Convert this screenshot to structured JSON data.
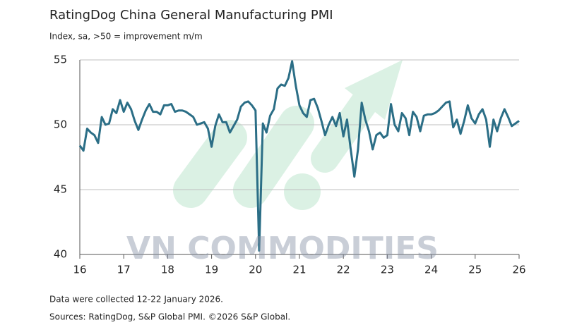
{
  "chart_data": {
    "type": "line",
    "title": "RatingDog China General Manufacturing PMI",
    "subtitle": "Index, sa, >50 = improvement m/m",
    "notes": [
      "Data were collected 12-22 January 2026.",
      "Sources: RatingDog, S&P Global PMI. ©2026 S&P Global."
    ],
    "watermark": "VN COMMODITIES",
    "color": "#2b6e86",
    "grid": true,
    "xlim": [
      16,
      26
    ],
    "xticks": [
      16,
      17,
      18,
      19,
      20,
      21,
      22,
      23,
      24,
      25,
      26
    ],
    "ylim": [
      40,
      55
    ],
    "yticks": [
      40,
      45,
      50,
      55
    ],
    "x": [
      16,
      16.083,
      16.167,
      16.25,
      16.333,
      16.417,
      16.5,
      16.583,
      16.667,
      16.75,
      16.833,
      16.917,
      17,
      17.083,
      17.167,
      17.25,
      17.333,
      17.417,
      17.5,
      17.583,
      17.667,
      17.75,
      17.833,
      17.917,
      18,
      18.083,
      18.167,
      18.25,
      18.333,
      18.417,
      18.5,
      18.583,
      18.667,
      18.75,
      18.833,
      18.917,
      19,
      19.083,
      19.167,
      19.25,
      19.333,
      19.417,
      19.5,
      19.583,
      19.667,
      19.75,
      19.833,
      19.917,
      20,
      20.083,
      20.167,
      20.25,
      20.333,
      20.417,
      20.5,
      20.583,
      20.667,
      20.75,
      20.833,
      20.917,
      21,
      21.083,
      21.167,
      21.25,
      21.333,
      21.417,
      21.5,
      21.583,
      21.667,
      21.75,
      21.833,
      21.917,
      22,
      22.083,
      22.167,
      22.25,
      22.333,
      22.417,
      22.5,
      22.583,
      22.667,
      22.75,
      22.833,
      22.917,
      23,
      23.083,
      23.167,
      23.25,
      23.333,
      23.417,
      23.5,
      23.583,
      23.667,
      23.75,
      23.833,
      23.917,
      24,
      24.083,
      24.167,
      24.25,
      24.333,
      24.417,
      24.5,
      24.583,
      24.667,
      24.75,
      24.833,
      24.917,
      25,
      25.083,
      25.167,
      25.25,
      25.333,
      25.417,
      25.5,
      25.583,
      25.667,
      25.75,
      25.833,
      25.917,
      26
    ],
    "values": [
      48.4,
      48.0,
      49.7,
      49.4,
      49.2,
      48.6,
      50.6,
      50.0,
      50.1,
      51.2,
      50.9,
      51.9,
      51.0,
      51.7,
      51.2,
      50.3,
      49.6,
      50.4,
      51.1,
      51.6,
      51.0,
      51.0,
      50.8,
      51.5,
      51.5,
      51.6,
      51.0,
      51.1,
      51.1,
      51.0,
      50.8,
      50.6,
      50.0,
      50.1,
      50.2,
      49.7,
      48.3,
      49.9,
      50.8,
      50.2,
      50.2,
      49.4,
      49.9,
      50.4,
      51.4,
      51.7,
      51.8,
      51.5,
      51.1,
      40.3,
      50.1,
      49.4,
      50.7,
      51.2,
      52.8,
      53.1,
      53.0,
      53.6,
      54.9,
      53.0,
      51.5,
      50.9,
      50.6,
      51.9,
      52.0,
      51.3,
      50.3,
      49.2,
      50.0,
      50.6,
      49.9,
      50.9,
      49.1,
      50.4,
      48.1,
      46.0,
      48.1,
      51.7,
      50.4,
      49.5,
      48.1,
      49.2,
      49.4,
      49.0,
      49.2,
      51.6,
      50.0,
      49.5,
      50.9,
      50.5,
      49.2,
      51.0,
      50.6,
      49.5,
      50.7,
      50.8,
      50.8,
      50.9,
      51.1,
      51.4,
      51.7,
      51.8,
      49.8,
      50.4,
      49.3,
      50.3,
      51.5,
      50.5,
      50.1,
      50.8,
      51.2,
      50.4,
      48.3,
      50.4,
      49.5,
      50.5,
      51.2,
      50.6,
      49.9,
      50.1,
      50.3
    ]
  }
}
